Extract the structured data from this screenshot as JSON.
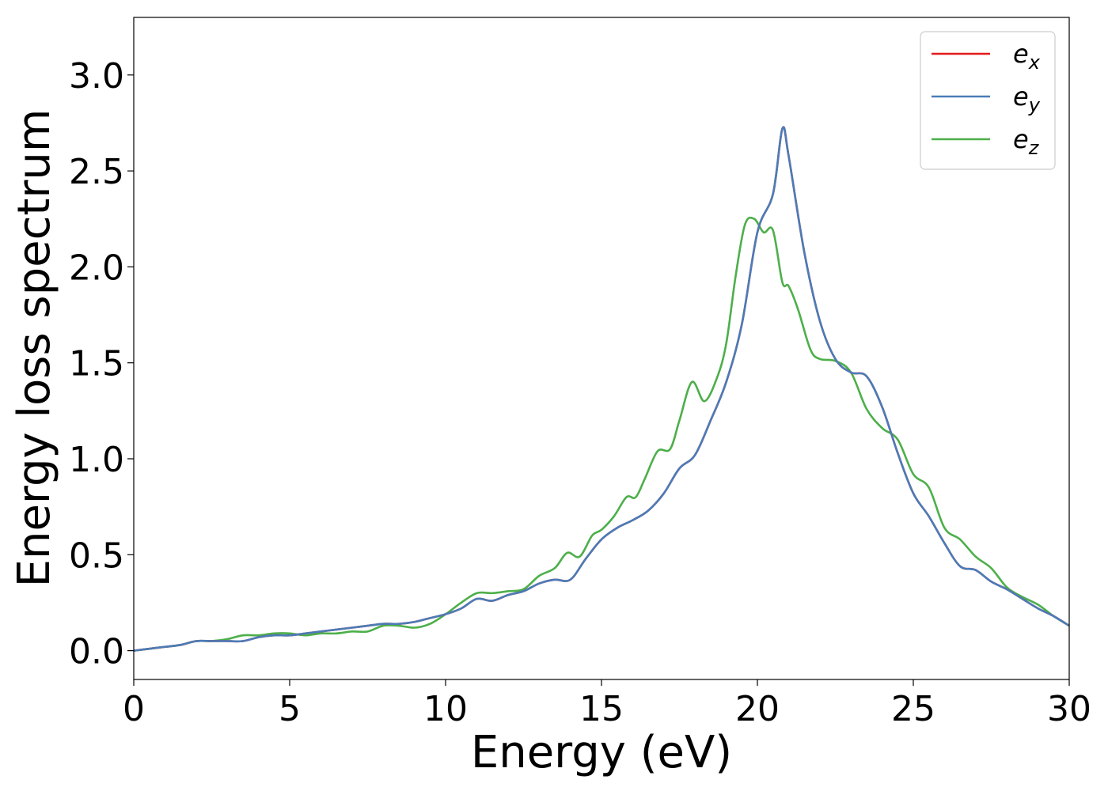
{
  "chart_data": {
    "type": "line",
    "xlabel": "Energy (eV)",
    "ylabel": "Energy loss spectrum",
    "xlim": [
      0,
      30
    ],
    "ylim": [
      -0.15,
      3.3
    ],
    "xticks": [
      "0",
      "5",
      "10",
      "15",
      "20",
      "25",
      "30"
    ],
    "yticks": [
      "0.0",
      "0.5",
      "1.0",
      "1.5",
      "2.0",
      "2.5",
      "3.0"
    ],
    "grid": false,
    "legend_position": "top-right",
    "series": [
      {
        "name": "e_x",
        "label_base": "e",
        "label_sub": "x",
        "color": "#e41a1c",
        "x": [
          0,
          0.5,
          1,
          1.5,
          2,
          2.5,
          3,
          3.5,
          4,
          4.5,
          5,
          5.5,
          6,
          6.5,
          7,
          7.5,
          8,
          8.5,
          9,
          9.5,
          10,
          10.5,
          11,
          11.5,
          12,
          12.5,
          13,
          13.5,
          14,
          14.5,
          15,
          15.5,
          16,
          16.5,
          17,
          17.5,
          18,
          18.5,
          19,
          19.5,
          20,
          20.5,
          20.8,
          21,
          21.5,
          22,
          22.5,
          23,
          23.5,
          24,
          24.5,
          25,
          25.5,
          26,
          26.5,
          27,
          27.5,
          28,
          28.5,
          29,
          29.5,
          30
        ],
        "y": [
          0.0,
          0.01,
          0.02,
          0.03,
          0.05,
          0.05,
          0.05,
          0.05,
          0.07,
          0.08,
          0.08,
          0.09,
          0.1,
          0.11,
          0.12,
          0.13,
          0.14,
          0.14,
          0.15,
          0.17,
          0.19,
          0.22,
          0.27,
          0.26,
          0.29,
          0.31,
          0.35,
          0.37,
          0.37,
          0.48,
          0.58,
          0.64,
          0.68,
          0.73,
          0.82,
          0.95,
          1.02,
          1.2,
          1.4,
          1.7,
          2.18,
          2.38,
          2.72,
          2.58,
          2.08,
          1.72,
          1.52,
          1.45,
          1.43,
          1.27,
          1.03,
          0.82,
          0.7,
          0.56,
          0.44,
          0.42,
          0.36,
          0.32,
          0.27,
          0.22,
          0.18,
          0.13
        ]
      },
      {
        "name": "e_y",
        "label_base": "e",
        "label_sub": "y",
        "color": "#4a7cb8",
        "x": [
          0,
          0.5,
          1,
          1.5,
          2,
          2.5,
          3,
          3.5,
          4,
          4.5,
          5,
          5.5,
          6,
          6.5,
          7,
          7.5,
          8,
          8.5,
          9,
          9.5,
          10,
          10.5,
          11,
          11.5,
          12,
          12.5,
          13,
          13.5,
          14,
          14.5,
          15,
          15.5,
          16,
          16.5,
          17,
          17.5,
          18,
          18.5,
          19,
          19.5,
          20,
          20.5,
          20.8,
          21,
          21.5,
          22,
          22.5,
          23,
          23.5,
          24,
          24.5,
          25,
          25.5,
          26,
          26.5,
          27,
          27.5,
          28,
          28.5,
          29,
          29.5,
          30
        ],
        "y": [
          0.0,
          0.01,
          0.02,
          0.03,
          0.05,
          0.05,
          0.05,
          0.05,
          0.07,
          0.08,
          0.08,
          0.09,
          0.1,
          0.11,
          0.12,
          0.13,
          0.14,
          0.14,
          0.15,
          0.17,
          0.19,
          0.22,
          0.27,
          0.26,
          0.29,
          0.31,
          0.35,
          0.37,
          0.37,
          0.48,
          0.58,
          0.64,
          0.68,
          0.73,
          0.82,
          0.95,
          1.02,
          1.2,
          1.4,
          1.7,
          2.18,
          2.38,
          2.72,
          2.58,
          2.08,
          1.72,
          1.52,
          1.45,
          1.43,
          1.27,
          1.03,
          0.82,
          0.7,
          0.56,
          0.44,
          0.42,
          0.36,
          0.32,
          0.27,
          0.22,
          0.18,
          0.13
        ]
      },
      {
        "name": "e_z",
        "label_base": "e",
        "label_sub": "z",
        "color": "#4daf4a",
        "x": [
          0,
          0.5,
          1,
          1.5,
          2,
          2.5,
          3,
          3.5,
          4,
          4.5,
          5,
          5.5,
          6,
          6.5,
          7,
          7.5,
          8,
          8.5,
          9,
          9.5,
          10,
          10.5,
          11,
          11.5,
          12,
          12.5,
          13,
          13.5,
          13.9,
          14.3,
          14.7,
          15,
          15.4,
          15.8,
          16.1,
          16.4,
          16.8,
          17.2,
          17.5,
          17.9,
          18.3,
          18.7,
          19,
          19.3,
          19.6,
          19.9,
          20.2,
          20.5,
          20.8,
          21,
          21.3,
          21.7,
          22,
          22.5,
          23,
          23.5,
          24,
          24.5,
          25,
          25.5,
          26,
          26.5,
          27,
          27.5,
          28,
          28.5,
          29,
          29.5,
          30
        ],
        "y": [
          0.0,
          0.01,
          0.02,
          0.03,
          0.05,
          0.05,
          0.06,
          0.08,
          0.08,
          0.09,
          0.09,
          0.08,
          0.09,
          0.09,
          0.1,
          0.1,
          0.13,
          0.13,
          0.12,
          0.14,
          0.19,
          0.25,
          0.3,
          0.3,
          0.31,
          0.32,
          0.39,
          0.43,
          0.51,
          0.49,
          0.6,
          0.63,
          0.7,
          0.8,
          0.8,
          0.9,
          1.04,
          1.05,
          1.2,
          1.4,
          1.3,
          1.42,
          1.6,
          1.95,
          2.22,
          2.25,
          2.18,
          2.19,
          1.92,
          1.9,
          1.78,
          1.57,
          1.52,
          1.51,
          1.45,
          1.26,
          1.16,
          1.1,
          0.92,
          0.85,
          0.64,
          0.58,
          0.49,
          0.43,
          0.33,
          0.28,
          0.24,
          0.18,
          0.13
        ]
      }
    ]
  }
}
